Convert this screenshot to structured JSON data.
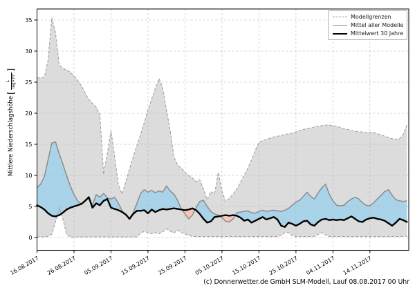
{
  "window": {
    "background": "#ffffff"
  },
  "chart_data": {
    "type": "line",
    "title": "",
    "caption": "(c) Donnerwetter.de GmbH SLM-Modell, Lauf 08.08.2017 00 Uhr",
    "x_axis": {
      "start_date": "16.08.2017",
      "step_days": 1,
      "tick_labels": [
        "16.08.2017",
        "26.08.2017",
        "05.09.2017",
        "15.09.2017",
        "25.09.2017",
        "05.10.2017",
        "15.10.2017",
        "25.10.2017",
        "04.11.2017",
        "14.11.2017"
      ],
      "tick_days": [
        0,
        10,
        20,
        30,
        40,
        50,
        60,
        70,
        80,
        90
      ]
    },
    "y_axis": {
      "label_main": "Mittlere Niederschlagshöhe",
      "unit_bracket_open": "[",
      "unit_numerator": "L",
      "unit_denominator": "Tag×m²",
      "unit_bracket_close": "]",
      "ticks": [
        0,
        5,
        10,
        15,
        20,
        25,
        30,
        35
      ],
      "range": [
        -2.05,
        36.8
      ]
    },
    "grid": {
      "visible": true,
      "style": "dashed"
    },
    "legend": {
      "position": "upper-right",
      "entries": [
        {
          "label": "Modellgrenzen",
          "style": "dashed-thin-gray"
        },
        {
          "label": "Mittel aller Modelle",
          "style": "solid-gray"
        },
        {
          "label": "Mittelwert 30 Jahre",
          "style": "solid-thick-black"
        }
      ]
    },
    "fills": {
      "model_range_band": "#dcdcdc",
      "mean_above_climate": "#a9d3e9",
      "mean_below_climate": "#f3c7b9"
    },
    "series": [
      {
        "name": "Modellgrenzen (obere Grenze)",
        "role": "upper_bound",
        "color": "#999999",
        "values": [
          25.7,
          25.7,
          25.8,
          28.5,
          35.4,
          33.0,
          27.8,
          27.2,
          27.0,
          26.6,
          26.0,
          25.3,
          24.4,
          23.3,
          22.2,
          21.6,
          21.0,
          19.8,
          10.2,
          13.5,
          17.2,
          13.0,
          8.5,
          7.0,
          9.0,
          11.0,
          13.0,
          14.8,
          16.6,
          18.5,
          20.5,
          22.3,
          24.0,
          25.6,
          24.0,
          20.5,
          17.3,
          13.0,
          11.7,
          11.2,
          10.5,
          10.0,
          9.6,
          9.0,
          9.3,
          7.8,
          6.1,
          7.4,
          7.0,
          10.5,
          7.5,
          5.8,
          6.3,
          7.0,
          7.8,
          8.9,
          10.0,
          11.2,
          12.5,
          14.0,
          15.3,
          15.6,
          15.8,
          16.0,
          16.2,
          16.3,
          16.4,
          16.6,
          16.7,
          16.8,
          17.0,
          17.2,
          17.4,
          17.5,
          17.6,
          17.8,
          17.9,
          18.0,
          18.1,
          18.1,
          18.0,
          17.9,
          17.7,
          17.5,
          17.4,
          17.2,
          17.1,
          17.0,
          17.0,
          16.9,
          16.9,
          16.9,
          16.7,
          16.5,
          16.3,
          16.1,
          15.9,
          15.8,
          15.9,
          16.6,
          18.1
        ]
      },
      {
        "name": "Modellgrenzen (untere Grenze)",
        "role": "lower_bound",
        "color": "#999999",
        "values": [
          0.1,
          0.1,
          0.1,
          0.2,
          0.5,
          2.5,
          4.8,
          3.0,
          0.5,
          0.1,
          0.1,
          0.1,
          0.1,
          0.1,
          0.1,
          0.1,
          0.1,
          0.1,
          0.1,
          0.1,
          0.1,
          0.1,
          0.1,
          0.1,
          0.1,
          0.1,
          0.1,
          0.1,
          0.7,
          1.0,
          0.8,
          0.6,
          0.8,
          0.6,
          0.9,
          1.4,
          1.0,
          0.7,
          1.2,
          0.8,
          0.6,
          0.3,
          0.2,
          0.15,
          0.15,
          0.15,
          0.15,
          0.15,
          0.15,
          0.15,
          0.15,
          0.15,
          0.15,
          0.15,
          0.15,
          0.15,
          0.15,
          0.15,
          0.15,
          0.15,
          0.15,
          0.15,
          0.15,
          0.15,
          0.15,
          0.15,
          0.3,
          0.8,
          0.8,
          0.3,
          0.15,
          0.15,
          0.15,
          0.15,
          0.15,
          0.2,
          0.5,
          0.8,
          0.4,
          0.15,
          0.15,
          0.15,
          0.15,
          0.15,
          0.15,
          0.15,
          0.15,
          0.15,
          0.15,
          0.15,
          0.15,
          0.15,
          0.15,
          0.15,
          0.15,
          0.15,
          0.15,
          0.15,
          0.15,
          0.2,
          0.2
        ]
      },
      {
        "name": "Mittel aller Modelle",
        "role": "model_mean",
        "color": "#8c8c8c",
        "values": [
          8.0,
          8.6,
          9.8,
          12.5,
          15.2,
          15.4,
          13.5,
          11.8,
          10.0,
          8.3,
          6.9,
          5.9,
          5.4,
          6.0,
          6.3,
          5.2,
          6.9,
          6.5,
          7.1,
          6.4,
          6.2,
          6.5,
          5.5,
          4.3,
          3.6,
          3.1,
          4.0,
          5.5,
          7.1,
          7.7,
          7.3,
          7.6,
          7.2,
          7.5,
          7.3,
          8.3,
          7.5,
          7.0,
          6.0,
          4.6,
          3.8,
          3.0,
          3.6,
          4.8,
          5.8,
          6.0,
          5.0,
          4.2,
          3.8,
          3.6,
          3.2,
          2.6,
          2.5,
          3.0,
          4.0,
          4.1,
          4.2,
          4.3,
          4.0,
          3.9,
          4.2,
          4.4,
          4.2,
          4.3,
          4.4,
          4.3,
          4.2,
          4.4,
          4.7,
          5.2,
          5.7,
          6.0,
          6.6,
          7.3,
          6.6,
          6.2,
          7.2,
          8.0,
          8.6,
          7.0,
          5.9,
          5.2,
          5.1,
          5.2,
          5.8,
          6.2,
          6.5,
          6.2,
          5.6,
          5.2,
          5.1,
          5.6,
          6.2,
          6.8,
          7.4,
          7.7,
          6.8,
          6.1,
          5.9,
          5.8,
          5.9
        ]
      },
      {
        "name": "Mittelwert 30 Jahre",
        "role": "mean_30y",
        "color": "#000000",
        "values": [
          5.2,
          4.9,
          4.5,
          3.9,
          3.5,
          3.4,
          3.6,
          4.0,
          4.5,
          4.8,
          5.0,
          5.2,
          5.4,
          5.9,
          6.5,
          4.8,
          5.5,
          5.2,
          5.9,
          6.2,
          4.8,
          4.6,
          4.4,
          4.1,
          3.7,
          3.0,
          3.8,
          4.3,
          4.3,
          4.4,
          3.9,
          4.5,
          4.1,
          4.4,
          4.6,
          4.5,
          4.6,
          4.7,
          4.6,
          4.5,
          4.4,
          4.5,
          4.7,
          4.4,
          3.8,
          3.0,
          2.4,
          2.6,
          3.3,
          3.4,
          3.5,
          3.6,
          3.5,
          3.6,
          3.5,
          3.2,
          2.7,
          2.9,
          2.4,
          2.7,
          3.0,
          3.3,
          2.9,
          3.1,
          3.3,
          2.9,
          1.9,
          1.7,
          2.4,
          2.2,
          1.9,
          2.2,
          2.6,
          2.7,
          2.1,
          1.9,
          2.5,
          2.9,
          3.0,
          2.8,
          2.9,
          2.8,
          2.9,
          2.8,
          3.1,
          3.4,
          3.0,
          2.6,
          2.5,
          2.9,
          3.1,
          3.2,
          3.0,
          2.9,
          2.7,
          2.3,
          1.9,
          2.4,
          3.0,
          2.8,
          2.5
        ]
      }
    ]
  }
}
